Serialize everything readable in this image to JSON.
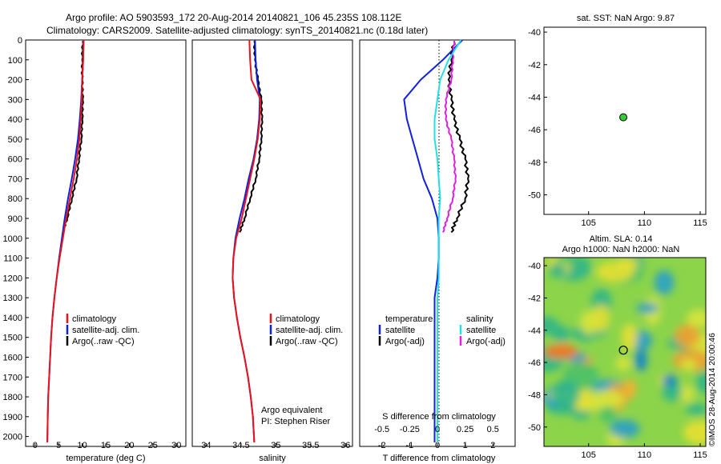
{
  "header": {
    "line1": "Argo profile: AO 5903593_172 20-Aug-2014 20140821_106 45.235S 108.112E",
    "line2": "Climatology: CARS2009. Satellite-adjusted climatology: synTS_20140821.nc (0.18d later)"
  },
  "colors": {
    "climatology": "#e8141c",
    "satellite": "#1020e0",
    "argo": "#000000",
    "sal_satellite": "#22e0e8",
    "sal_argo": "#e020e0",
    "map_land": "#ffffff",
    "marker": "#33cc33"
  },
  "depth_axis": {
    "ticks": [
      0,
      100,
      200,
      300,
      400,
      500,
      600,
      700,
      800,
      900,
      1000,
      1100,
      1200,
      1300,
      1400,
      1500,
      1600,
      1700,
      1800,
      1900,
      2000
    ],
    "range": [
      0,
      2050
    ]
  },
  "temp_panel": {
    "xlabel": "temperature (deg C)",
    "xticks": [
      "0",
      "5",
      "10",
      "15",
      "20",
      "25",
      "30"
    ],
    "xrange": [
      -2,
      32
    ],
    "legend": [
      "climatology",
      "satellite-adj. clim.",
      "Argo(..raw -QC)"
    ]
  },
  "sal_panel": {
    "xlabel": "salinity",
    "xticks": [
      "34",
      "34.5",
      "35",
      "35.5",
      "36"
    ],
    "xrange": [
      33.8,
      36.1
    ],
    "legend": [
      "climatology",
      "satellite-adj. clim.",
      "Argo(..raw -QC)"
    ],
    "note1": "Argo equivalent",
    "note2": "PI: Stephen Riser"
  },
  "diff_panel": {
    "xlabel": "T difference from climatology",
    "xticks": [
      "-2",
      "-1",
      "0",
      "1",
      "2"
    ],
    "xrange": [
      -2.8,
      2.8
    ],
    "top_label": "S difference from climatology",
    "top_ticks": [
      "-0.5",
      "-0.25",
      "0",
      "0.25",
      "0.5"
    ],
    "legend_t_title": "temperature",
    "legend_s_title": "salinity",
    "legend_t": [
      "satellite",
      "Argo(-adj)"
    ],
    "legend_s": [
      "satellite",
      "Argo(-adj)"
    ]
  },
  "sst_map": {
    "title": "sat. SST: NaN Argo: 9.87",
    "xticks": [
      "105",
      "110",
      "115"
    ],
    "yticks": [
      "-40",
      "-42",
      "-44",
      "-46",
      "-48",
      "-50"
    ],
    "xrange": [
      101,
      115.5
    ],
    "yrange": [
      -51.2,
      -39.7
    ],
    "float_lon": 108.112,
    "float_lat": -45.235
  },
  "sla_map": {
    "title1": "Altim. SLA: 0.14",
    "title2": "Argo h1000: NaN h2000: NaN",
    "xticks": [
      "105",
      "110",
      "115"
    ],
    "yticks": [
      "-40",
      "-42",
      "-44",
      "-46",
      "-48",
      "-50"
    ],
    "xrange": [
      101,
      115.5
    ],
    "yrange": [
      -51.2,
      -39.5
    ],
    "float_lon": 108.112,
    "float_lat": -45.235
  },
  "footer": {
    "stamp": "©IMOS 28-Aug-2014 20:00:46"
  },
  "chart_data": [
    {
      "type": "line",
      "ylabel": "",
      "xlabel": "temperature (deg C)",
      "y_inverted": true,
      "series": [
        {
          "name": "climatology",
          "x": [
            10.3,
            10.2,
            10.0,
            9.9,
            9.7,
            9.4,
            8.9,
            8.2,
            7.4,
            6.6,
            5.9,
            5.2,
            4.6,
            4.1,
            3.7,
            3.4,
            3.2,
            3.0,
            2.8,
            2.7,
            2.6
          ],
          "y": [
            0,
            100,
            200,
            300,
            400,
            500,
            600,
            700,
            800,
            900,
            1000,
            1100,
            1200,
            1300,
            1400,
            1500,
            1600,
            1700,
            1800,
            1900,
            2030
          ]
        },
        {
          "name": "satellite-adj. clim.",
          "x": [
            10.3,
            10.2,
            10.0,
            9.8,
            9.5,
            9.1,
            8.5,
            7.8,
            7.0,
            6.3,
            5.7,
            5.1,
            4.6,
            4.1,
            3.7,
            3.4,
            3.2,
            3.0,
            2.8,
            2.7,
            2.6
          ],
          "y": [
            0,
            100,
            200,
            300,
            400,
            500,
            600,
            700,
            800,
            900,
            1000,
            1100,
            1200,
            1300,
            1400,
            1500,
            1600,
            1700,
            1800,
            1900,
            2030
          ]
        },
        {
          "name": "Argo(..raw -QC)",
          "x": [
            10.1,
            10.0,
            10.0,
            10.1,
            10.0,
            9.8,
            9.3,
            8.8,
            7.8,
            6.8,
            5.9
          ],
          "y": [
            5,
            100,
            200,
            300,
            400,
            500,
            600,
            700,
            800,
            900,
            970
          ]
        }
      ]
    },
    {
      "type": "line",
      "xlabel": "salinity",
      "y_inverted": true,
      "series": [
        {
          "name": "climatology",
          "x": [
            34.62,
            34.63,
            34.65,
            34.78,
            34.77,
            34.74,
            34.69,
            34.63,
            34.57,
            34.51,
            34.43,
            34.39,
            34.38,
            34.4,
            34.44,
            34.49,
            34.55,
            34.6,
            34.64,
            34.67,
            34.69
          ],
          "y": [
            0,
            100,
            200,
            300,
            400,
            500,
            600,
            700,
            800,
            900,
            1000,
            1100,
            1200,
            1300,
            1400,
            1500,
            1600,
            1700,
            1800,
            1900,
            2030
          ]
        },
        {
          "name": "satellite-adj. clim.",
          "x": [
            34.7,
            34.71,
            34.73,
            34.77,
            34.76,
            34.73,
            34.68,
            34.61,
            34.55,
            34.48,
            34.42,
            34.39,
            34.38,
            34.4,
            34.44,
            34.49,
            34.55,
            34.6,
            34.64,
            34.67,
            34.69
          ],
          "y": [
            0,
            100,
            200,
            300,
            400,
            500,
            600,
            700,
            800,
            900,
            1000,
            1100,
            1200,
            1300,
            1400,
            1500,
            1600,
            1700,
            1800,
            1900,
            2030
          ]
        },
        {
          "name": "Argo(..raw -QC)",
          "x": [
            34.69,
            34.7,
            34.74,
            34.79,
            34.8,
            34.79,
            34.76,
            34.71,
            34.63,
            34.55,
            34.48
          ],
          "y": [
            5,
            100,
            200,
            300,
            400,
            500,
            600,
            700,
            800,
            900,
            970
          ]
        }
      ]
    },
    {
      "type": "line",
      "xlabel": "T difference from climatology",
      "y_inverted": true,
      "series": [
        {
          "name": "temperature satellite",
          "x": [
            0.9,
            0.2,
            -0.6,
            -1.2,
            -1.1,
            -0.9,
            -0.7,
            -0.5,
            -0.2,
            0.0,
            0.05,
            0.05,
            0.0,
            -0.1,
            -0.1,
            -0.1,
            -0.1,
            -0.1,
            -0.1,
            -0.1,
            -0.1
          ],
          "y": [
            0,
            100,
            200,
            300,
            400,
            500,
            600,
            700,
            800,
            900,
            1000,
            1100,
            1200,
            1300,
            1400,
            1500,
            1600,
            1700,
            1800,
            1900,
            2030
          ]
        },
        {
          "name": "temperature Argo(-adj)",
          "x": [
            0.6,
            0.5,
            0.4,
            0.5,
            0.6,
            0.8,
            1.0,
            1.1,
            1.0,
            0.7,
            0.5
          ],
          "y": [
            5,
            100,
            200,
            300,
            400,
            500,
            600,
            700,
            800,
            900,
            970
          ]
        },
        {
          "name": "salinity satellite",
          "x": [
            0.85,
            0.4,
            0.1,
            0.0,
            -0.1,
            -0.1,
            0.0,
            0.05,
            0.1,
            0.05,
            0.05,
            0.05,
            0.05,
            0.0,
            0.0,
            0.0,
            0.0,
            0.0,
            0.0,
            0.0,
            0.0
          ],
          "y": [
            0,
            100,
            200,
            300,
            400,
            500,
            600,
            700,
            800,
            900,
            1000,
            1100,
            1200,
            1300,
            1400,
            1500,
            1600,
            1700,
            1800,
            1900,
            2030
          ]
        },
        {
          "name": "salinity Argo(-adj)",
          "x": [
            0.6,
            0.55,
            0.5,
            0.3,
            0.3,
            0.5,
            0.6,
            0.65,
            0.55,
            0.35,
            0.2
          ],
          "y": [
            5,
            100,
            200,
            300,
            400,
            500,
            600,
            700,
            800,
            900,
            970
          ]
        }
      ]
    },
    {
      "type": "scatter",
      "title": "sat. SST: NaN Argo: 9.87",
      "x": [
        108.112
      ],
      "y": [
        -45.235
      ],
      "xlim": [
        101,
        115.5
      ],
      "ylim": [
        -51.2,
        -39.7
      ]
    },
    {
      "type": "heatmap",
      "title": "Altim. SLA: 0.14",
      "subtitle": "Argo h1000: NaN h2000: NaN",
      "x": [
        108.112
      ],
      "y": [
        -45.235
      ],
      "xlim": [
        101,
        115.5
      ],
      "ylim": [
        -51.2,
        -39.5
      ]
    }
  ]
}
